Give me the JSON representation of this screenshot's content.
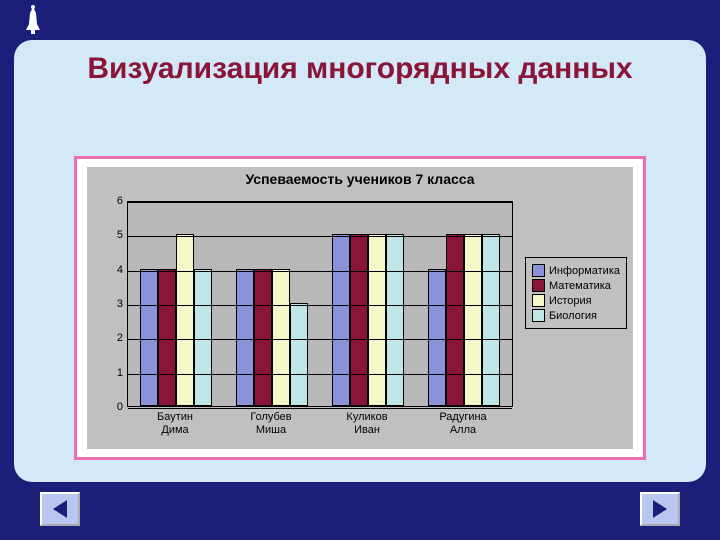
{
  "slide": {
    "title": "Визуализация многорядных данных",
    "title_color": "#8a1538",
    "title_fontsize": 30,
    "bg_color": "#1c1f7a",
    "panel_color": "#d4e9f7",
    "frame_border_color": "#e86fb0"
  },
  "chart": {
    "type": "bar",
    "title": "Успеваемость учеников 7 класса",
    "title_fontsize": 14,
    "plot_bg": "#b8b8b8",
    "outer_bg": "#c0c0c0",
    "grid_color": "#000000",
    "ylim": [
      0,
      6
    ],
    "ytick_step": 1,
    "yticks": [
      "0",
      "1",
      "2",
      "3",
      "4",
      "5",
      "6"
    ],
    "categories": [
      "Баутин Дима",
      "Голубев Миша",
      "Куликов Иван",
      "Радугина Алла"
    ],
    "series": [
      {
        "name": "Информатика",
        "color": "#8a93d9",
        "values": [
          4,
          4,
          5,
          4
        ]
      },
      {
        "name": "Математика",
        "color": "#8a1538",
        "values": [
          4,
          4,
          5,
          5
        ]
      },
      {
        "name": "История",
        "color": "#f4f6c8",
        "values": [
          5,
          4,
          5,
          5
        ]
      },
      {
        "name": "Биология",
        "color": "#bfe6e6",
        "values": [
          4,
          3,
          5,
          5
        ]
      }
    ],
    "bar_width": 0.19,
    "group_gap": 0.24,
    "legend_position": "right"
  },
  "nav": {
    "prev_label": "prev",
    "next_label": "next",
    "button_bg": "#b9c6f0",
    "arrow_color": "#1c1f7a"
  }
}
